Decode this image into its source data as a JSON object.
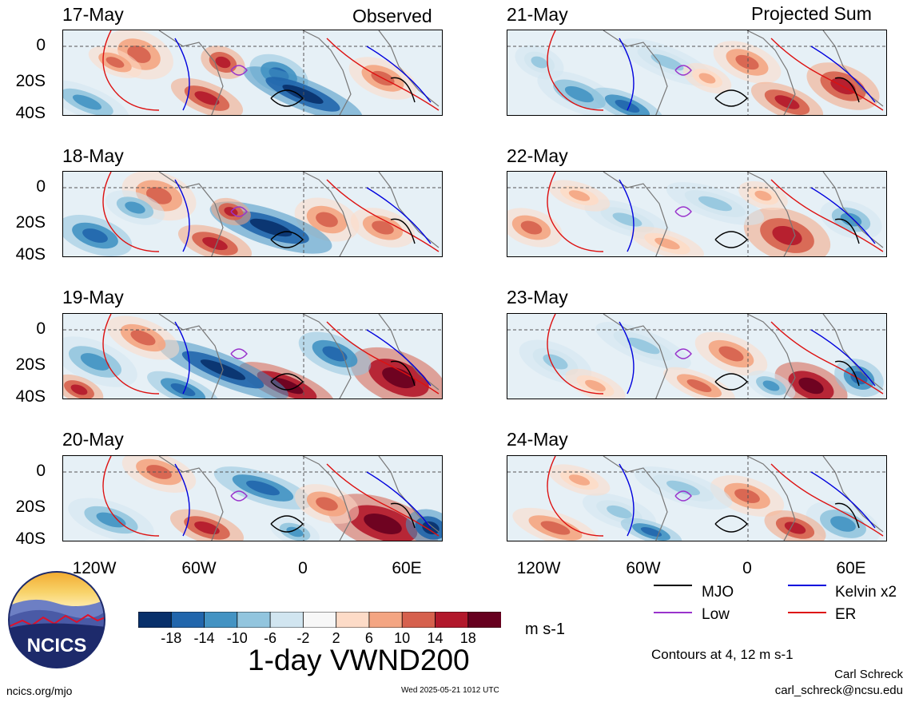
{
  "left_header": {
    "label": "Observed"
  },
  "right_header": {
    "label": "Projected Sum"
  },
  "panels": [
    {
      "date": "17-May",
      "side": "left",
      "row": 0
    },
    {
      "date": "18-May",
      "side": "left",
      "row": 1
    },
    {
      "date": "19-May",
      "side": "left",
      "row": 2
    },
    {
      "date": "20-May",
      "side": "left",
      "row": 3
    },
    {
      "date": "21-May",
      "side": "right",
      "row": 0
    },
    {
      "date": "22-May",
      "side": "right",
      "row": 1
    },
    {
      "date": "23-May",
      "side": "right",
      "row": 2
    },
    {
      "date": "24-May",
      "side": "right",
      "row": 3
    }
  ],
  "lat_ticks": [
    "0",
    "20S",
    "40S"
  ],
  "lon_ticks": [
    "120W",
    "60W",
    "0",
    "60E"
  ],
  "legend": {
    "mjo": {
      "label": "MJO",
      "color": "#000000"
    },
    "kelvin": {
      "label": "Kelvin x2",
      "color": "#0000dd"
    },
    "low": {
      "label": "Low",
      "color": "#9933cc"
    },
    "er": {
      "label": "ER",
      "color": "#dd1111"
    },
    "contours_note": "Contours at 4, 12 m s-1"
  },
  "colorbar": {
    "colors": [
      "#08306b",
      "#2166ac",
      "#4393c3",
      "#92c5de",
      "#d1e5f0",
      "#f7f7f7",
      "#fddbc7",
      "#f4a582",
      "#d6604d",
      "#b2182b",
      "#67001f"
    ],
    "labels": [
      "-18",
      "-14",
      "-10",
      "-6",
      "-2",
      "2",
      "6",
      "10",
      "14",
      "18"
    ],
    "units": "m s-1"
  },
  "title": "1-day VWND200",
  "logo": {
    "text": "NCICS"
  },
  "footer": {
    "url": "ncics.org/mjo",
    "timestamp": "Wed 2025-05-21 1012 UTC",
    "author": "Carl Schreck",
    "email": "carl_schreck@ncsu.edu"
  }
}
